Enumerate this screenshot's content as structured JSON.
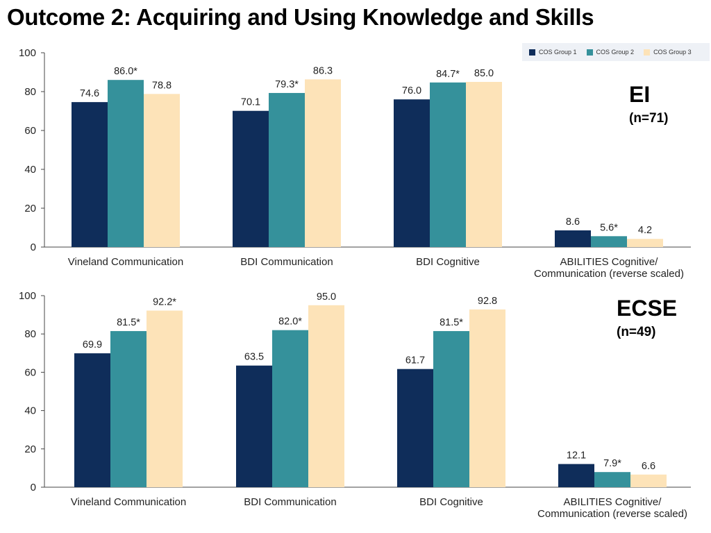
{
  "slide": {
    "title": "Outcome 2: Acquiring and Using Knowledge and Skills"
  },
  "legend": {
    "items": [
      {
        "label": "COS Group 1",
        "color": "#0f2d5a"
      },
      {
        "label": "COS Group 2",
        "color": "#35919b"
      },
      {
        "label": "COS Group 3",
        "color": "#fde3b8"
      }
    ]
  },
  "panels": {
    "ei": {
      "label": "EI",
      "n": "(n=71)"
    },
    "ecse": {
      "label": "ECSE",
      "n": "(n=49)"
    }
  },
  "chart_data": [
    {
      "type": "bar",
      "panel": "EI",
      "categories": [
        "Vineland Communication",
        "BDI Communication",
        "BDI Cognitive",
        "ABILITIES Cognitive/ Communication (reverse scaled)"
      ],
      "category_lines": [
        [
          "Vineland Communication"
        ],
        [
          "BDI Communication"
        ],
        [
          "BDI Cognitive"
        ],
        [
          "ABILITIES Cognitive/",
          "Communication (reverse scaled)"
        ]
      ],
      "series": [
        {
          "name": "COS Group 1",
          "color": "#0f2d5a",
          "values": [
            74.6,
            70.1,
            76.0,
            8.6
          ],
          "labels": [
            "74.6",
            "70.1",
            "76.0",
            "8.6"
          ]
        },
        {
          "name": "COS Group 2",
          "color": "#35919b",
          "values": [
            86.0,
            79.3,
            84.7,
            5.6
          ],
          "labels": [
            "86.0*",
            "79.3*",
            "84.7*",
            "5.6*"
          ]
        },
        {
          "name": "COS Group 3",
          "color": "#fde3b8",
          "values": [
            78.8,
            86.3,
            85.0,
            4.2
          ],
          "labels": [
            "78.8",
            "86.3",
            "85.0",
            "4.2"
          ]
        }
      ],
      "yticks": [
        0,
        20,
        40,
        60,
        80,
        100
      ],
      "ylim": [
        0,
        100
      ]
    },
    {
      "type": "bar",
      "panel": "ECSE",
      "categories": [
        "Vineland Communication",
        "BDI Communication",
        "BDI Cognitive",
        "ABILITIES Cognitive/ Communication (reverse scaled)"
      ],
      "category_lines": [
        [
          "Vineland Communication"
        ],
        [
          "BDI Communication"
        ],
        [
          "BDI Cognitive"
        ],
        [
          "ABILITIES Cognitive/",
          "Communication (reverse scaled)"
        ]
      ],
      "series": [
        {
          "name": "COS Group 1",
          "color": "#0f2d5a",
          "values": [
            69.9,
            63.5,
            61.7,
            12.1
          ],
          "labels": [
            "69.9",
            "63.5",
            "61.7",
            "12.1"
          ]
        },
        {
          "name": "COS Group 2",
          "color": "#35919b",
          "values": [
            81.5,
            82.0,
            81.5,
            7.9
          ],
          "labels": [
            "81.5*",
            "82.0*",
            "81.5*",
            "7.9*"
          ]
        },
        {
          "name": "COS Group 3",
          "color": "#fde3b8",
          "values": [
            92.2,
            95.0,
            92.8,
            6.6
          ],
          "labels": [
            "92.2*",
            "95.0",
            "92.8",
            "6.6"
          ]
        }
      ],
      "yticks": [
        0,
        20,
        40,
        60,
        80,
        100
      ],
      "ylim": [
        0,
        100
      ]
    }
  ]
}
